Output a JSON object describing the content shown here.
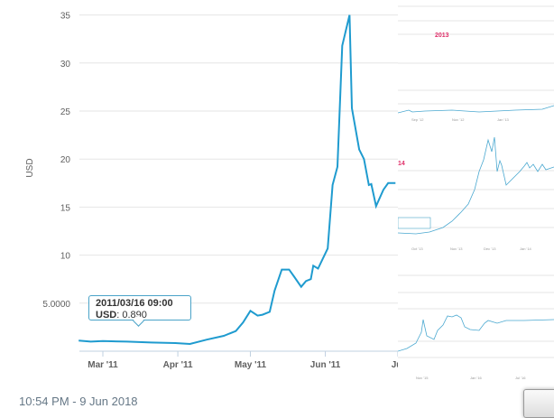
{
  "chart_data": {
    "type": "line",
    "title": "",
    "xlabel": "",
    "ylabel": "USD",
    "x_unit": "days since 2011-03-01",
    "x_ticks": [
      {
        "day": 0,
        "label": "Mar '11"
      },
      {
        "day": 31,
        "label": "Apr '11"
      },
      {
        "day": 61,
        "label": "May '11"
      },
      {
        "day": 92,
        "label": "Jun '11"
      },
      {
        "day": 122,
        "label": "Jul"
      }
    ],
    "y_ticks": [
      {
        "v": 5,
        "label": "5.0000"
      },
      {
        "v": 10,
        "label": "10"
      },
      {
        "v": 15,
        "label": "15"
      },
      {
        "v": 20,
        "label": "20"
      },
      {
        "v": 25,
        "label": "25"
      },
      {
        "v": 30,
        "label": "30"
      },
      {
        "v": 35,
        "label": "35"
      }
    ],
    "xlim": [
      -10,
      122
    ],
    "ylim": [
      0,
      35
    ],
    "series": [
      {
        "name": "USD",
        "color": "#1f9bcf",
        "x": [
          -10,
          -5,
          0,
          10,
          20,
          30,
          36,
          43,
          50,
          55,
          58,
          61,
          64,
          66,
          69,
          71,
          74,
          77,
          79,
          82,
          84,
          86,
          87,
          89,
          93,
          95,
          97,
          99,
          102,
          103,
          106,
          108,
          110,
          111,
          113,
          116,
          118,
          121
        ],
        "y": [
          1.1,
          1.0,
          1.05,
          1.0,
          0.9,
          0.85,
          0.75,
          1.2,
          1.6,
          2.1,
          3.0,
          4.2,
          3.7,
          3.8,
          4.1,
          6.3,
          8.5,
          8.5,
          7.8,
          6.7,
          7.3,
          7.5,
          8.9,
          8.6,
          10.7,
          17.3,
          19.2,
          31.8,
          35.0,
          25.3,
          21.0,
          20.0,
          17.3,
          17.4,
          15.1,
          16.8,
          17.5,
          17.5
        ]
      }
    ],
    "tooltip": {
      "date": "2011/03/16 09:00",
      "label": "USD",
      "value": ": 0.890"
    }
  },
  "side": {
    "label_2013": "2013",
    "label_14": "14"
  },
  "timestamp": "10:54 PM - 9 Jun 2018"
}
